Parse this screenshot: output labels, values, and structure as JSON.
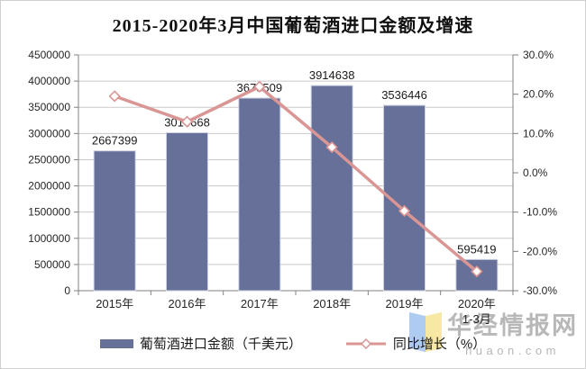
{
  "chart_data": {
    "type": "bar",
    "subtype": "bar-line-combo",
    "title": "2015-2020年3月中国葡萄酒进口金额及增速",
    "categories": [
      "2015年",
      "2016年",
      "2017年",
      "2018年",
      "2019年",
      "2020年1-3月"
    ],
    "category_display": [
      [
        "2015年"
      ],
      [
        "2016年"
      ],
      [
        "2017年"
      ],
      [
        "2018年"
      ],
      [
        "2019年"
      ],
      [
        "2020年",
        "1-3月"
      ]
    ],
    "series": [
      {
        "name": "葡萄酒进口金额（千美元）",
        "type": "bar",
        "axis": "left",
        "values": [
          2667399,
          3014668,
          3675509,
          3914638,
          3536446,
          595419
        ],
        "color": "#667099",
        "border_color": "#CDD2E2"
      },
      {
        "name": "同比增长（%）",
        "type": "line",
        "axis": "right",
        "values": [
          19.5,
          13.0,
          21.9,
          6.5,
          -9.7,
          -25.1
        ],
        "color": "#D99694",
        "marker": "open-diamond"
      }
    ],
    "left_axis": {
      "min": 0,
      "max": 4500000,
      "step": 500000,
      "labels": [
        "0",
        "500000",
        "1000000",
        "1500000",
        "2000000",
        "2500000",
        "3000000",
        "3500000",
        "4000000",
        "4500000"
      ]
    },
    "right_axis": {
      "min": -30,
      "max": 30,
      "step": 10,
      "labels": [
        "-30.0%",
        "-20.0%",
        "-10.0%",
        "0.0%",
        "10.0%",
        "20.0%",
        "30.0%"
      ]
    },
    "grid": true,
    "legend_position": "bottom"
  },
  "watermark": {
    "name": "华经情报网",
    "url": "huaon.com"
  }
}
